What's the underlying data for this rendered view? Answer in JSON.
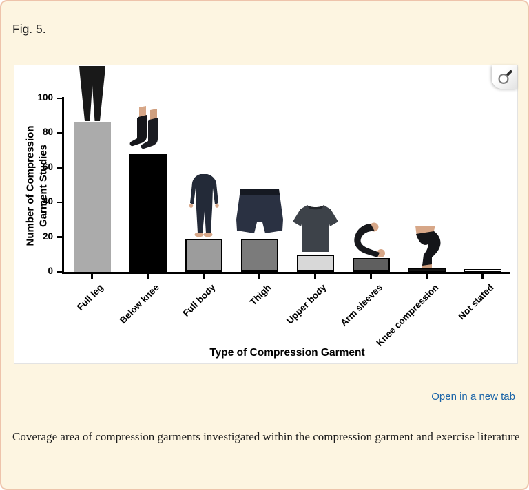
{
  "page": {
    "figure_label": "Fig. 5.",
    "link_label": "Open in a new tab",
    "caption": "Coverage area of compression garments investigated within the compression garment and exercise literature",
    "background_color": "#fdf5e1",
    "border_color": "#eec3ab",
    "link_color": "#1a64a8"
  },
  "chart_data": {
    "type": "bar",
    "title": "",
    "categories": [
      "Full leg",
      "Below knee",
      "Full body",
      "Thigh",
      "Upper body",
      "Arm sleeves",
      "Knee compression",
      "Not stated"
    ],
    "values": [
      86,
      68,
      19,
      19,
      10,
      8,
      2,
      1.5
    ],
    "bar_colors": [
      "#ababab",
      "#000000",
      "#9c9c9c",
      "#7b7b7b",
      "#d8d8d8",
      "#5f5f5f",
      "#141414",
      "#ffffff"
    ],
    "bar_outlines": [
      "none",
      "#000000",
      "#000000",
      "#000000",
      "#000000",
      "#000000",
      "#000000",
      "#000000"
    ],
    "garment_icons": [
      "full-leg-tights",
      "below-knee-socks",
      "full-body-suit",
      "thigh-shorts",
      "upper-body-shirt",
      "arm-sleeve",
      "knee-sleeve",
      ""
    ],
    "xlabel": "Type of Compression Garment",
    "ylabel": "Number of Compression Garment Studies",
    "ylim": [
      0,
      100
    ],
    "yticks": [
      0,
      20,
      40,
      60,
      80,
      100
    ],
    "grid": false,
    "legend": false
  }
}
